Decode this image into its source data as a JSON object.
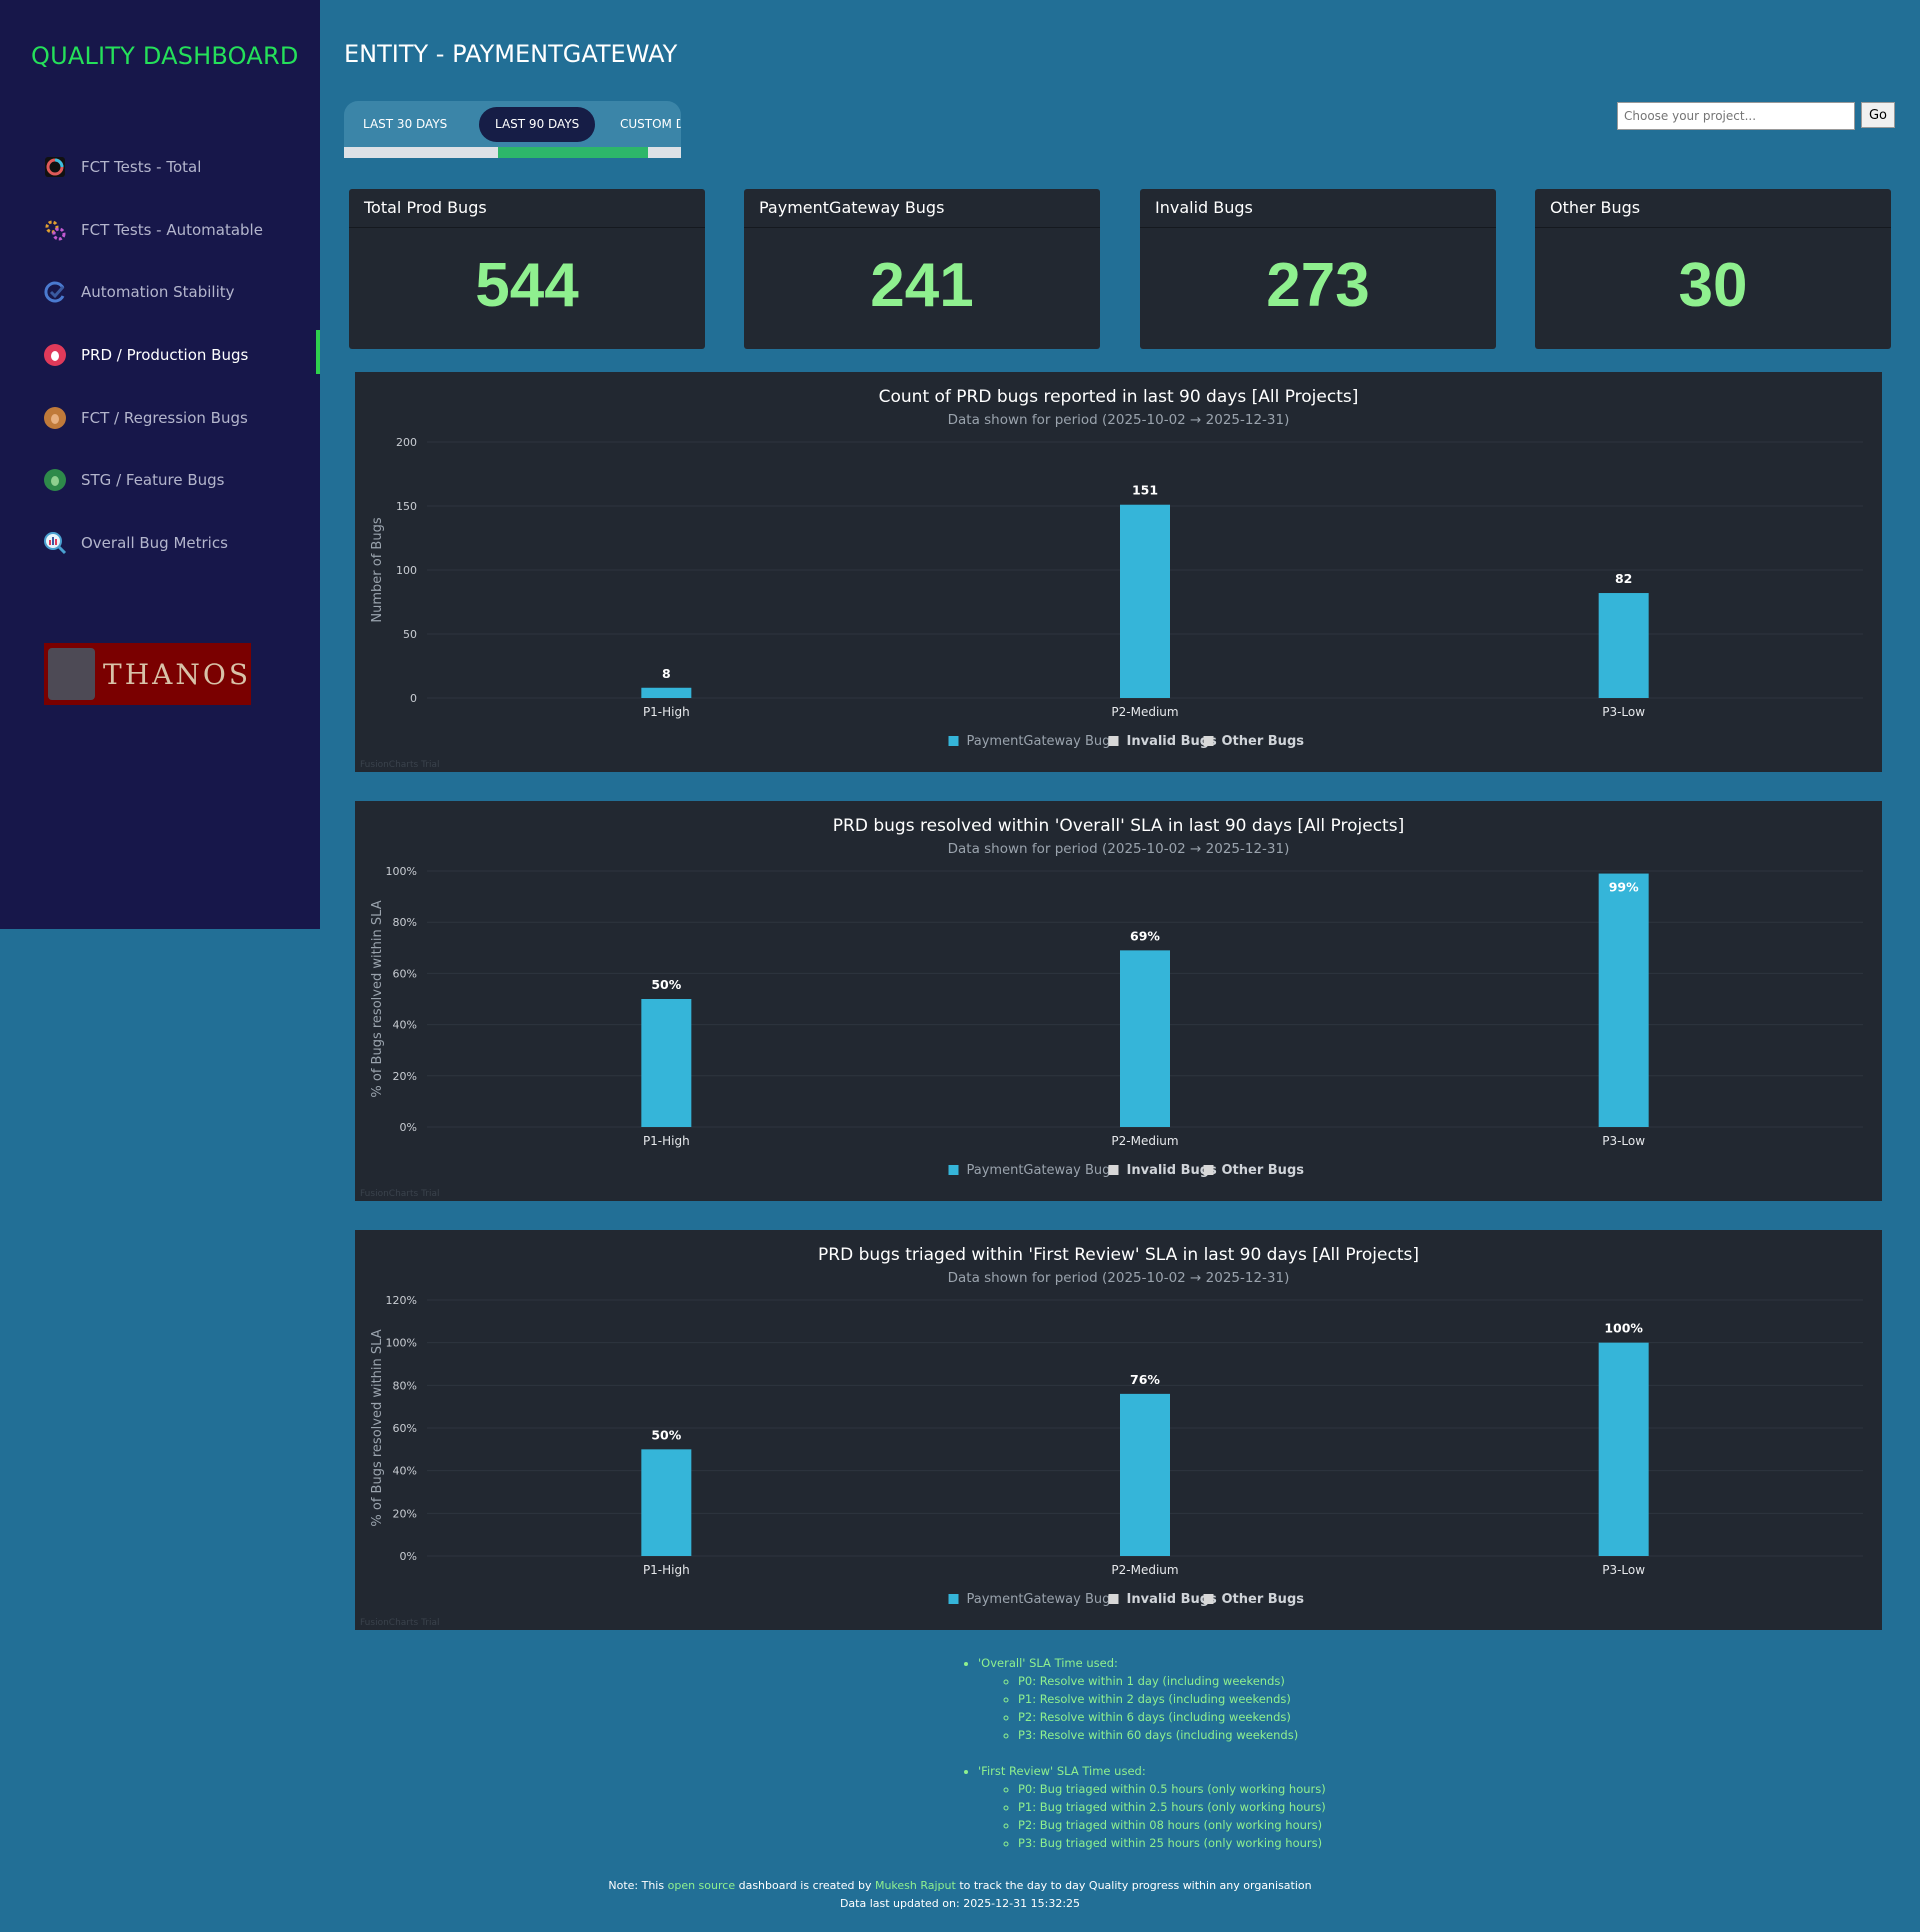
{
  "sidebar": {
    "brand": "QUALITY DASHBOARD",
    "items": [
      {
        "label": "FCT Tests - Total",
        "icon": "donut-chart-icon",
        "color": "#e05a5a"
      },
      {
        "label": "FCT Tests - Automatable",
        "icon": "gears-icon",
        "color": "#e0a030"
      },
      {
        "label": "Automation Stability",
        "icon": "check-cycle-icon",
        "color": "#4a7ad0"
      },
      {
        "label": "PRD / Production Bugs",
        "icon": "bug-icon",
        "color": "#e03a5a"
      },
      {
        "label": "FCT / Regression Bugs",
        "icon": "bug-icon",
        "color": "#c07a3a"
      },
      {
        "label": "STG / Feature Bugs",
        "icon": "bug-icon",
        "color": "#2e8a4a"
      },
      {
        "label": "Overall Bug Metrics",
        "icon": "magnifier-chart-icon",
        "color": "#4aa0d0"
      }
    ],
    "active_index": 3,
    "logo_text": "THANOS"
  },
  "header": {
    "title": "ENTITY - PAYMENTGATEWAY",
    "ranges": [
      "LAST 30 DAYS",
      "LAST 90 DAYS",
      "CUSTOM DA"
    ],
    "active_range": 1,
    "project_placeholder": "Choose your project...",
    "go_label": "Go"
  },
  "cards": [
    {
      "title": "Total Prod Bugs",
      "value": "544"
    },
    {
      "title": "PaymentGateway Bugs",
      "value": "241"
    },
    {
      "title": "Invalid Bugs",
      "value": "273"
    },
    {
      "title": "Other Bugs",
      "value": "30"
    }
  ],
  "chart_data": [
    {
      "type": "bar",
      "title": "Count of PRD bugs reported in last 90 days [All Projects]",
      "subtitle": "Data shown for period (2025-10-02 → 2025-12-31)",
      "ylabel": "Number of Bugs",
      "ylim": [
        0,
        200
      ],
      "yticks": [
        "0",
        "50",
        "100",
        "150",
        "200"
      ],
      "categories": [
        "P1-High",
        "P2-Medium",
        "P3-Low"
      ],
      "series": [
        {
          "name": "PaymentGateway Bugs",
          "values": [
            8,
            151,
            82
          ]
        }
      ],
      "data_labels": [
        "8",
        "151",
        "82"
      ],
      "legend": [
        "PaymentGateway Bugs",
        "Invalid Bugs",
        "Other Bugs"
      ],
      "watermark": "FusionCharts Trial",
      "bar_color": "#35b5d9"
    },
    {
      "type": "bar",
      "title": "PRD bugs resolved within 'Overall' SLA in last 90 days [All Projects]",
      "subtitle": "Data shown for period (2025-10-02 → 2025-12-31)",
      "ylabel": "% of Bugs resolved within SLA",
      "ylim": [
        0,
        100
      ],
      "yticks": [
        "0%",
        "20%",
        "40%",
        "60%",
        "80%",
        "100%"
      ],
      "categories": [
        "P1-High",
        "P2-Medium",
        "P3-Low"
      ],
      "series": [
        {
          "name": "PaymentGateway Bugs",
          "values": [
            50,
            69,
            99
          ]
        }
      ],
      "data_labels": [
        "50%",
        "69%",
        "99%"
      ],
      "legend": [
        "PaymentGateway Bugs",
        "Invalid Bugs",
        "Other Bugs"
      ],
      "watermark": "FusionCharts Trial",
      "bar_color": "#35b5d9"
    },
    {
      "type": "bar",
      "title": "PRD bugs triaged within 'First Review' SLA in last 90 days [All Projects]",
      "subtitle": "Data shown for period (2025-10-02 → 2025-12-31)",
      "ylabel": "% of Bugs resolved within SLA",
      "ylim": [
        0,
        120
      ],
      "yticks": [
        "0%",
        "20%",
        "40%",
        "60%",
        "80%",
        "100%",
        "120%"
      ],
      "categories": [
        "P1-High",
        "P2-Medium",
        "P3-Low"
      ],
      "series": [
        {
          "name": "PaymentGateway Bugs",
          "values": [
            50,
            76,
            100
          ]
        }
      ],
      "data_labels": [
        "50%",
        "76%",
        "100%"
      ],
      "legend": [
        "PaymentGateway Bugs",
        "Invalid Bugs",
        "Other Bugs"
      ],
      "watermark": "FusionCharts Trial",
      "bar_color": "#35b5d9"
    }
  ],
  "notes": {
    "overall_title": "'Overall' SLA Time used:",
    "overall_items": [
      "P0: Resolve within 1 day (including weekends)",
      "P1: Resolve within 2 days (including weekends)",
      "P2: Resolve within 6 days (including weekends)",
      "P3: Resolve within 60 days (including weekends)"
    ],
    "first_review_title": "'First Review' SLA Time used:",
    "first_review_items": [
      "P0: Bug triaged within 0.5 hours (only working hours)",
      "P1: Bug triaged within 2.5 hours (only working hours)",
      "P2: Bug triaged within 08 hours (only working hours)",
      "P3: Bug triaged within 25 hours (only working hours)"
    ]
  },
  "footer": {
    "note_prefix": "Note: This",
    "open_source": "open source",
    "note_middle": "dashboard is created by",
    "author": "Mukesh Rajput",
    "note_suffix": "to track the day to day Quality progress within any organisation",
    "last_updated": "Data last updated on: 2025-12-31 15:32:25"
  }
}
